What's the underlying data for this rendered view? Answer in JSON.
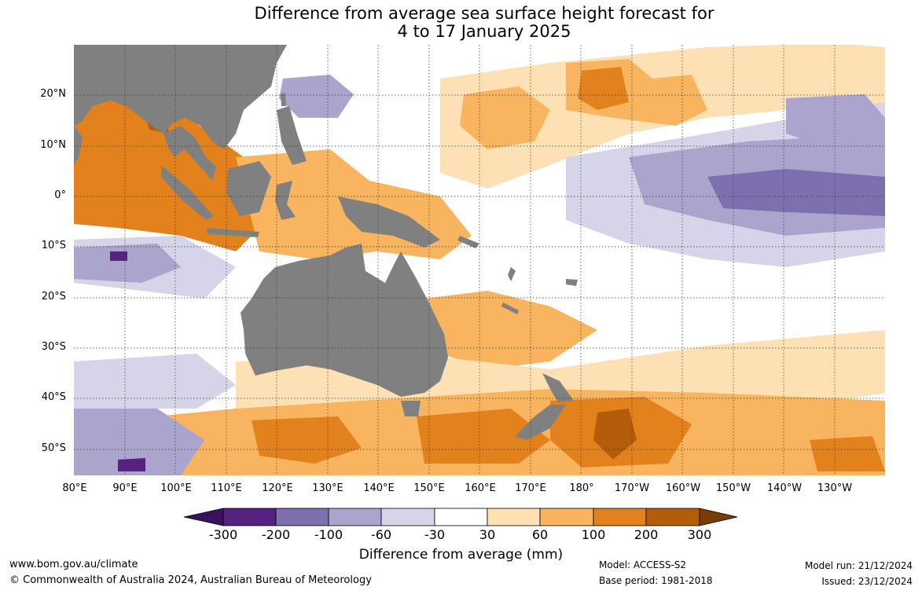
{
  "title_line1": "Difference from average sea surface height forecast for",
  "title_line2": "4 to 17 January 2025",
  "lat_labels": [
    "20°N",
    "10°N",
    "0°",
    "10°S",
    "20°S",
    "30°S",
    "40°S",
    "50°S"
  ],
  "lon_labels": [
    "80°E",
    "90°E",
    "100°E",
    "110°E",
    "120°E",
    "130°E",
    "140°E",
    "150°E",
    "160°E",
    "170°E",
    "180°",
    "170°W",
    "160°W",
    "150°W",
    "140°W",
    "130°W"
  ],
  "colorbar": {
    "labels": [
      "-300",
      "-200",
      "-100",
      "-60",
      "-30",
      "30",
      "60",
      "100",
      "200",
      "300"
    ],
    "colors": [
      "#3a1160",
      "#55227f",
      "#7e6fae",
      "#aba4cd",
      "#d6d4e8",
      "#ffffff",
      "#fde0b3",
      "#f8b45e",
      "#e3821c",
      "#b35d0b",
      "#7a3c06"
    ]
  },
  "unit_label": "Difference from average (mm)",
  "footer": {
    "website": "www.bom.gov.au/climate",
    "copyright": "© Commonwealth of Australia 2024, Australian Bureau of Meteorology",
    "model": "Model: ACCESS-S2",
    "base_period": "Base period: 1981-2018",
    "model_run": "Model run: 21/12/2024",
    "issued": "Issued: 23/12/2024"
  },
  "colors": {
    "land": "#808080",
    "grid": "#333333"
  }
}
